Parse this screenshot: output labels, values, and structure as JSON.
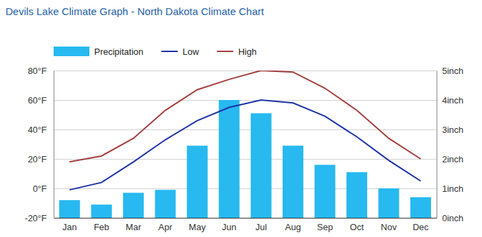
{
  "chart_data": {
    "type": "bar",
    "title": "Devils Lake Climate Graph - North Dakota Climate Chart",
    "categories": [
      "Jan",
      "Feb",
      "Mar",
      "Apr",
      "May",
      "Jun",
      "Jul",
      "Aug",
      "Sep",
      "Oct",
      "Nov",
      "Dec"
    ],
    "series": [
      {
        "name": "Precipitation",
        "type": "bar",
        "color": "#27b9ef",
        "axis": "y2",
        "values": [
          0.6,
          0.45,
          0.85,
          0.95,
          2.45,
          4.0,
          3.55,
          2.45,
          1.8,
          1.55,
          1.0,
          0.7
        ]
      },
      {
        "name": "Low",
        "type": "line",
        "color": "#1a2ea6",
        "values": [
          -1,
          4,
          18,
          33,
          46,
          55,
          60,
          58,
          49,
          35,
          19,
          5
        ]
      },
      {
        "name": "High",
        "type": "line",
        "color": "#a33c3c",
        "values": [
          18,
          22,
          34,
          53,
          67,
          74,
          80,
          79,
          68,
          53,
          34,
          20
        ]
      }
    ],
    "ylim": [
      -20,
      80
    ],
    "yticks": [
      {
        "value": -20,
        "label": "-20°F"
      },
      {
        "value": 0,
        "label": "0°F"
      },
      {
        "value": 20,
        "label": "20°F"
      },
      {
        "value": 40,
        "label": "40°F"
      },
      {
        "value": 60,
        "label": "60°F"
      },
      {
        "value": 80,
        "label": "80°F"
      }
    ],
    "y2lim": [
      0,
      5
    ],
    "y2ticks": [
      {
        "value": 0,
        "label": "0inch"
      },
      {
        "value": 1,
        "label": "1inch"
      },
      {
        "value": 2,
        "label": "2inch"
      },
      {
        "value": 3,
        "label": "3inch"
      },
      {
        "value": 4,
        "label": "4inch"
      },
      {
        "value": 5,
        "label": "5inch"
      }
    ],
    "grid": true,
    "legend": "top"
  }
}
